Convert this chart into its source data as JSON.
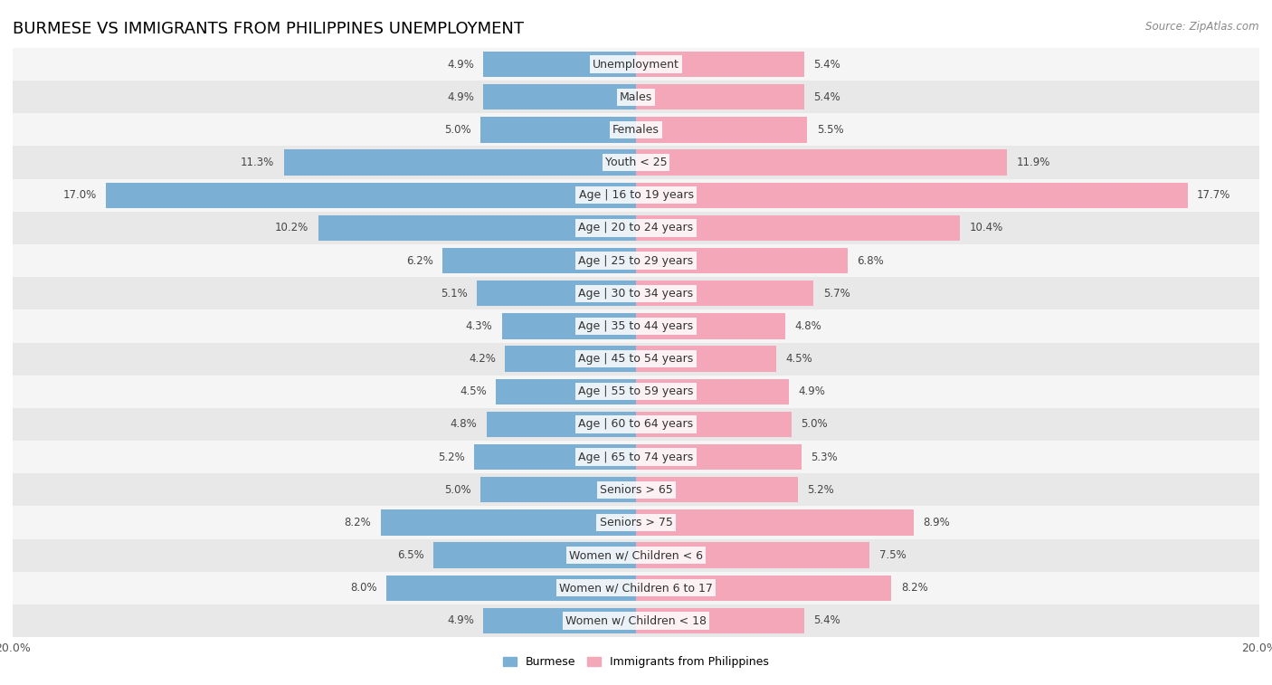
{
  "title": "BURMESE VS IMMIGRANTS FROM PHILIPPINES UNEMPLOYMENT",
  "source": "Source: ZipAtlas.com",
  "categories": [
    "Unemployment",
    "Males",
    "Females",
    "Youth < 25",
    "Age | 16 to 19 years",
    "Age | 20 to 24 years",
    "Age | 25 to 29 years",
    "Age | 30 to 34 years",
    "Age | 35 to 44 years",
    "Age | 45 to 54 years",
    "Age | 55 to 59 years",
    "Age | 60 to 64 years",
    "Age | 65 to 74 years",
    "Seniors > 65",
    "Seniors > 75",
    "Women w/ Children < 6",
    "Women w/ Children 6 to 17",
    "Women w/ Children < 18"
  ],
  "burmese": [
    4.9,
    4.9,
    5.0,
    11.3,
    17.0,
    10.2,
    6.2,
    5.1,
    4.3,
    4.2,
    4.5,
    4.8,
    5.2,
    5.0,
    8.2,
    6.5,
    8.0,
    4.9
  ],
  "philippines": [
    5.4,
    5.4,
    5.5,
    11.9,
    17.7,
    10.4,
    6.8,
    5.7,
    4.8,
    4.5,
    4.9,
    5.0,
    5.3,
    5.2,
    8.9,
    7.5,
    8.2,
    5.4
  ],
  "burmese_color": "#7bafd4",
  "philippines_color": "#f4a7b9",
  "bar_height": 0.78,
  "xlim": 20.0,
  "row_bg_light": "#f5f5f5",
  "row_bg_dark": "#e8e8e8",
  "title_fontsize": 13,
  "label_fontsize": 9,
  "value_fontsize": 8.5,
  "tick_fontsize": 9,
  "legend_fontsize": 9
}
